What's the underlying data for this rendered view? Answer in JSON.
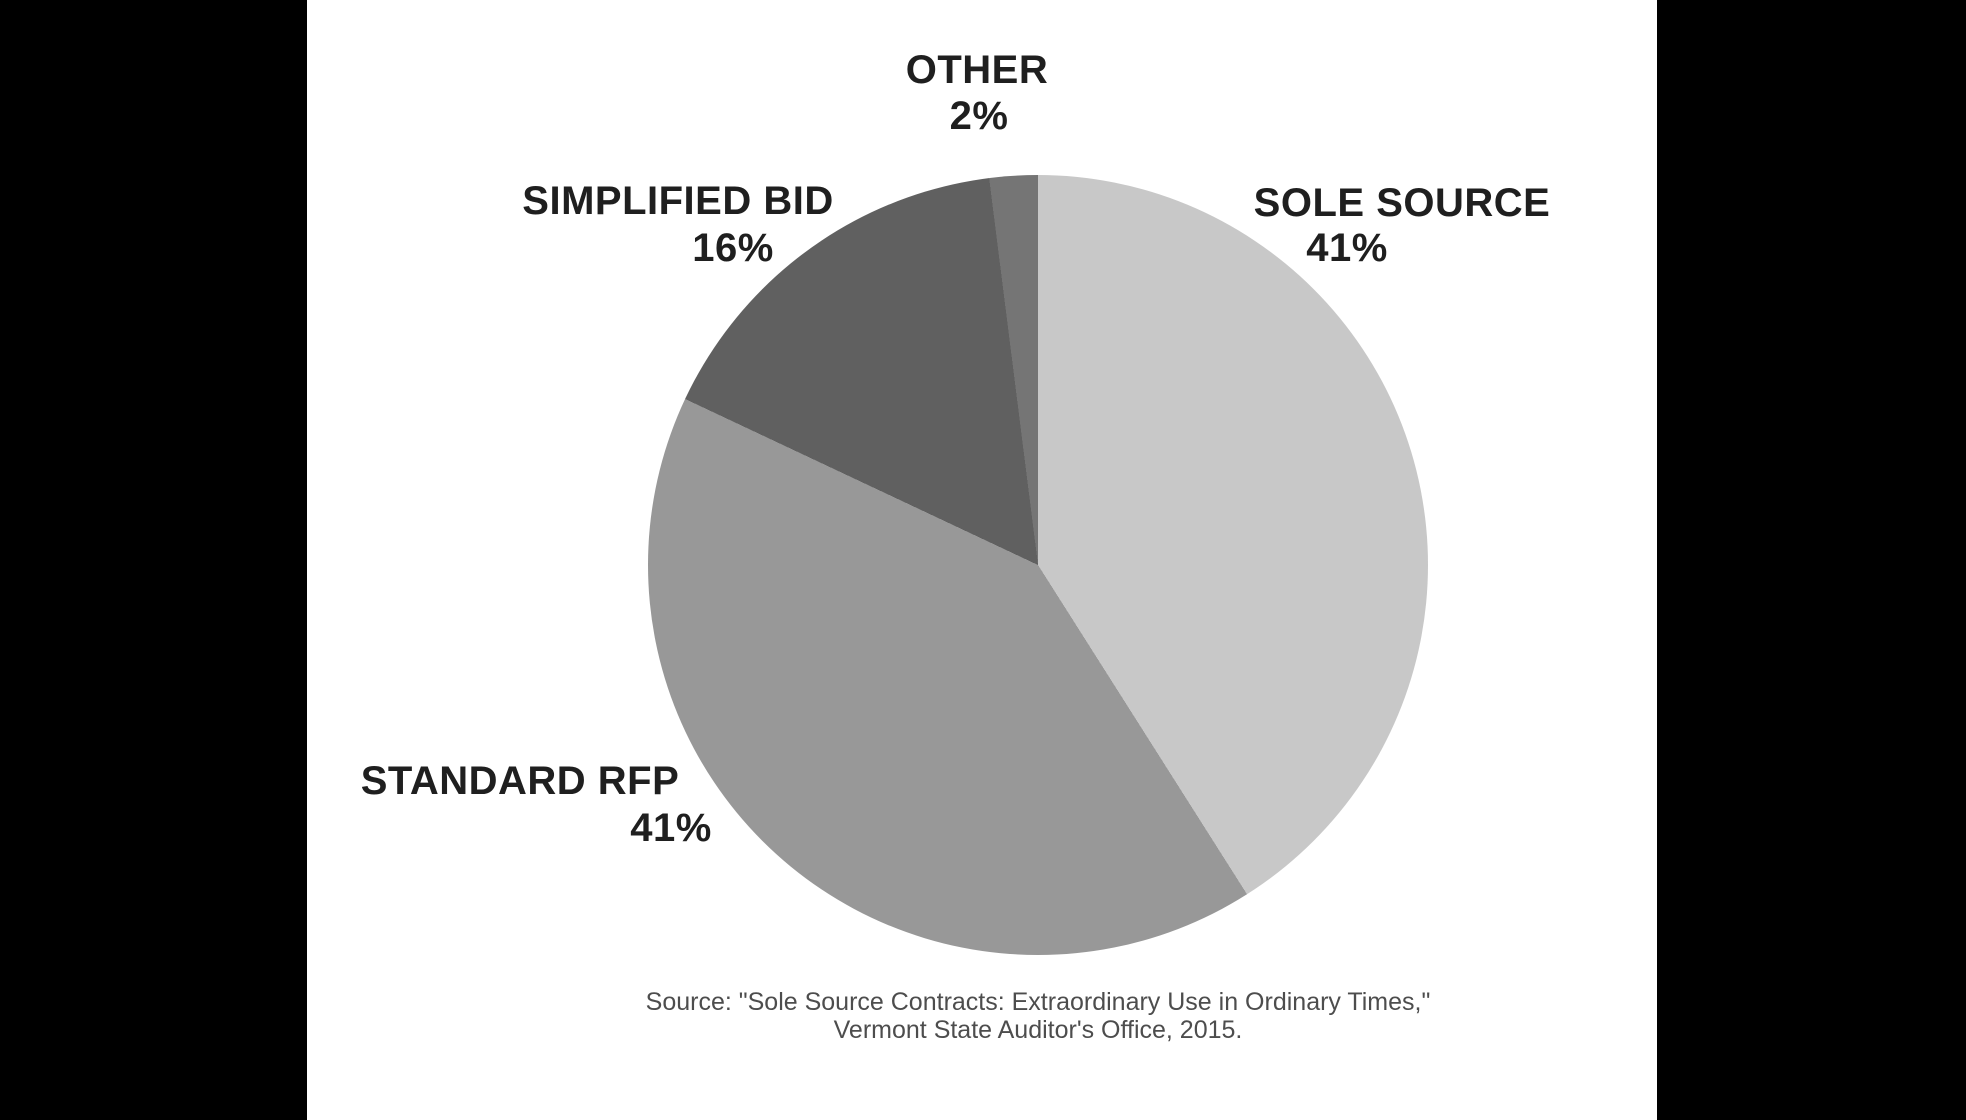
{
  "chart_data": {
    "type": "pie",
    "title": "",
    "start_angle_deg": 0,
    "direction": "clockwise",
    "legend_position": "labels-around-pie",
    "slices": [
      {
        "label": "SOLE SOURCE",
        "value": 41,
        "pct_label": "41%",
        "color": "#c8c8c8"
      },
      {
        "label": "STANDARD RFP",
        "value": 41,
        "pct_label": "41%",
        "color": "#989898"
      },
      {
        "label": "SIMPLIFIED BID",
        "value": 16,
        "pct_label": "16%",
        "color": "#606060"
      },
      {
        "label": "OTHER",
        "value": 2,
        "pct_label": "2%",
        "color": "#757575"
      }
    ],
    "source": {
      "line1": "Source: \"Sole Source Contracts: Extraordinary Use in Ordinary Times,\"",
      "line2": "Vermont State Auditor's Office, 2015."
    }
  },
  "colors": {
    "page_background": "#000000",
    "chart_background": "#ffffff",
    "label_text": "#1f1f1f",
    "source_text": "#4d4d4d"
  }
}
